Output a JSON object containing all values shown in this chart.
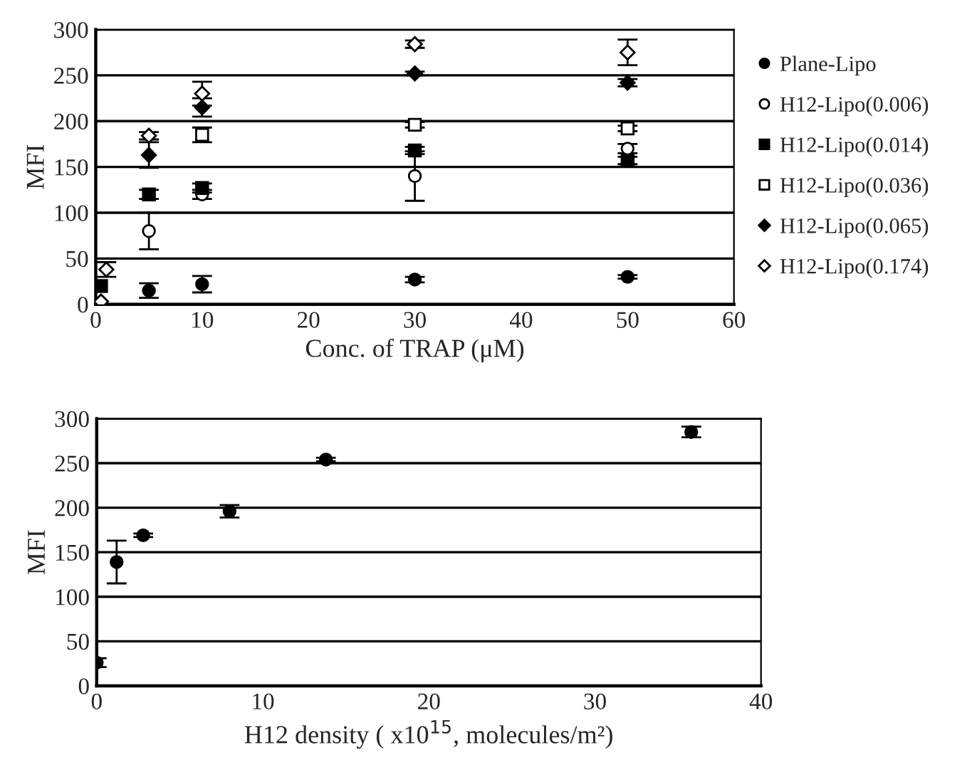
{
  "chart_data": [
    {
      "type": "scatter",
      "xlabel": "Conc. of TRAP (μM)",
      "ylabel": "MFI",
      "xlim": [
        0,
        60
      ],
      "xticks": [
        0,
        10,
        20,
        30,
        40,
        50,
        60
      ],
      "ylim": [
        0,
        300
      ],
      "yticks": [
        0,
        50,
        100,
        150,
        200,
        250,
        300
      ],
      "grid": "y",
      "legend": "right",
      "series": [
        {
          "name": "Plane-Lipo",
          "marker": "circle",
          "color": "#000000",
          "x": [
            5,
            10,
            30,
            50
          ],
          "values": [
            15,
            22,
            27,
            30
          ],
          "errors": [
            8,
            9,
            3,
            2
          ]
        },
        {
          "name": "H12-Lipo(0.006)",
          "marker": "circle",
          "color": "#ffffff",
          "x": [
            5,
            10,
            30,
            50
          ],
          "values": [
            80,
            120,
            140,
            170
          ],
          "errors": [
            20,
            5,
            27,
            5
          ]
        },
        {
          "name": "H12-Lipo(0.014)",
          "marker": "square",
          "color": "#000000",
          "x": [
            0.5,
            5,
            10,
            30,
            50
          ],
          "values": [
            20,
            120,
            127,
            168,
            157
          ],
          "errors": [
            null,
            5,
            5,
            4,
            4
          ]
        },
        {
          "name": "H12-Lipo(0.036)",
          "marker": "square",
          "color": "#ffffff",
          "x": [
            10,
            30,
            50
          ],
          "values": [
            185,
            196,
            192
          ],
          "errors": [
            8,
            3,
            3
          ]
        },
        {
          "name": "H12-Lipo(0.065)",
          "marker": "diamond",
          "color": "#000000",
          "x": [
            5,
            10,
            30,
            50
          ],
          "values": [
            163,
            215,
            252,
            242
          ],
          "errors": [
            14,
            10,
            2,
            4
          ]
        },
        {
          "name": "H12-Lipo(0.174)",
          "marker": "diamond",
          "color": "#ffffff",
          "x": [
            0.5,
            1,
            5,
            10,
            30,
            50
          ],
          "values": [
            3,
            38,
            184,
            230,
            284,
            275
          ],
          "errors": [
            null,
            8,
            4,
            13,
            4,
            14
          ]
        }
      ]
    },
    {
      "type": "scatter",
      "xlabel": "H12 density ( x10$^{15}$, molecules/m²)",
      "ylabel": "MFI",
      "xlim": [
        0,
        40
      ],
      "xticks": [
        0,
        10,
        20,
        30,
        40
      ],
      "ylim": [
        0,
        300
      ],
      "yticks": [
        0,
        50,
        100,
        150,
        200,
        250,
        300
      ],
      "grid": "y",
      "legend": false,
      "series": [
        {
          "marker": "circle",
          "color": "#000000",
          "x": [
            0,
            1.2,
            2.8,
            8,
            13.8,
            35.8
          ],
          "values": [
            26,
            139,
            169,
            196,
            254,
            285
          ],
          "errors": [
            5,
            24,
            2,
            7,
            2,
            6
          ]
        }
      ]
    }
  ]
}
